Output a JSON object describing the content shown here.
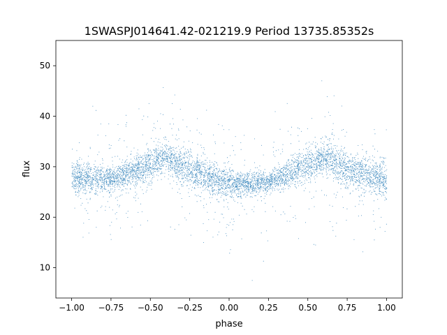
{
  "chart_data": {
    "type": "scatter",
    "title": "1SWASPJ014641.42-021219.9 Period 13735.85352s",
    "xlabel": "phase",
    "ylabel": "flux",
    "xlim": [
      -1.1,
      1.1
    ],
    "ylim": [
      4,
      55
    ],
    "x_ticks": [
      -1.0,
      -0.75,
      -0.5,
      -0.25,
      0.0,
      0.25,
      0.5,
      0.75,
      1.0
    ],
    "x_tick_labels": [
      "−1.00",
      "−0.75",
      "−0.50",
      "−0.25",
      "0.00",
      "0.25",
      "0.50",
      "0.75",
      "1.00"
    ],
    "y_ticks": [
      10,
      20,
      30,
      40,
      50
    ],
    "y_tick_labels": [
      "10",
      "20",
      "30",
      "40",
      "50"
    ],
    "grid": false,
    "marker_color": "#1f77b4",
    "description_of_data": "Phase-folded light curve of ~60k points; main band flux ~23-37 with two ellipsoidal-like humps",
    "series": [
      {
        "envelope_upper": [
          {
            "x": -1.0,
            "y": 33
          },
          {
            "x": -0.75,
            "y": 31
          },
          {
            "x": -0.5,
            "y": 36
          },
          {
            "x": -0.4,
            "y": 37
          },
          {
            "x": -0.25,
            "y": 35
          },
          {
            "x": 0.0,
            "y": 31
          },
          {
            "x": 0.25,
            "y": 30
          },
          {
            "x": 0.5,
            "y": 36
          },
          {
            "x": 0.6,
            "y": 37
          },
          {
            "x": 0.75,
            "y": 35
          },
          {
            "x": 1.0,
            "y": 33
          }
        ],
        "envelope_lower": [
          {
            "x": -1.0,
            "y": 23
          },
          {
            "x": -0.75,
            "y": 24
          },
          {
            "x": -0.5,
            "y": 25
          },
          {
            "x": -0.4,
            "y": 27
          },
          {
            "x": -0.25,
            "y": 24
          },
          {
            "x": 0.0,
            "y": 22
          },
          {
            "x": 0.25,
            "y": 24
          },
          {
            "x": 0.5,
            "y": 25
          },
          {
            "x": 0.6,
            "y": 27
          },
          {
            "x": 0.75,
            "y": 24
          },
          {
            "x": 1.0,
            "y": 22
          }
        ]
      }
    ]
  }
}
